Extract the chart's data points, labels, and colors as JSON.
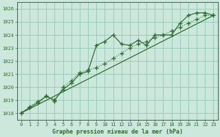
{
  "title": "Graphe pression niveau de la mer (hPa)",
  "bg_color": "#cce8dd",
  "line_color": "#2d6a2d",
  "grid_color": "#99ccbb",
  "xlim": [
    -0.5,
    23.5
  ],
  "ylim": [
    1017.5,
    1026.5
  ],
  "yticks": [
    1018,
    1019,
    1020,
    1021,
    1022,
    1023,
    1024,
    1025,
    1026
  ],
  "xticks": [
    0,
    1,
    2,
    3,
    4,
    5,
    6,
    7,
    8,
    9,
    10,
    11,
    12,
    13,
    14,
    15,
    16,
    17,
    18,
    19,
    20,
    21,
    22,
    23
  ],
  "series1_x": [
    0,
    1,
    2,
    3,
    4,
    5,
    6,
    7,
    8,
    9,
    10,
    11,
    12,
    13,
    14,
    15,
    16,
    17,
    18,
    19,
    20,
    21,
    22,
    23
  ],
  "series1_y": [
    1018.0,
    1018.4,
    1018.8,
    1019.3,
    1019.0,
    1019.8,
    1020.3,
    1021.0,
    1021.2,
    1023.2,
    1023.5,
    1024.0,
    1023.3,
    1023.2,
    1023.6,
    1023.2,
    1024.0,
    1024.0,
    1024.0,
    1024.9,
    1025.5,
    1025.7,
    1025.7,
    1025.5
  ],
  "series2_x": [
    0,
    23
  ],
  "series2_y": [
    1018.0,
    1025.5
  ],
  "series3_x": [
    0,
    1,
    2,
    3,
    4,
    5,
    6,
    7,
    8,
    9,
    10,
    11,
    12,
    13,
    14,
    15,
    16,
    17,
    18,
    19,
    20,
    21,
    22,
    23
  ],
  "series3_y": [
    1018.0,
    1018.5,
    1018.9,
    1019.3,
    1018.9,
    1020.0,
    1020.5,
    1021.1,
    1021.3,
    1021.5,
    1021.8,
    1022.2,
    1022.6,
    1023.0,
    1023.3,
    1023.5,
    1023.8,
    1024.0,
    1024.3,
    1024.6,
    1024.9,
    1025.2,
    1025.5,
    1025.5
  ],
  "tick_fontsize": 5,
  "xlabel_fontsize": 6
}
